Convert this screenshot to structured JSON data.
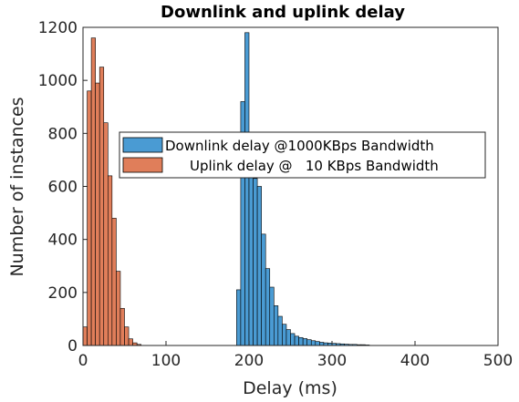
{
  "chart_data": {
    "type": "bar",
    "title": "Downlink and uplink delay",
    "xlabel": "Delay (ms)",
    "ylabel": "Number of instances",
    "xlim": [
      0,
      500
    ],
    "ylim": [
      0,
      1200
    ],
    "xticks": [
      "0",
      "100",
      "200",
      "300",
      "400",
      "500"
    ],
    "yticks": [
      "0",
      "200",
      "400",
      "600",
      "800",
      "1000",
      "1200"
    ],
    "bin_width": 5,
    "grid": false,
    "legend": "center",
    "colors": {
      "downlink": "#4a9bd3",
      "uplink": "#e07e5a",
      "edge": "#000000"
    },
    "series": [
      {
        "name": "Downlink delay @1000KBps Bandwidth",
        "color": "#4a9bd3",
        "bin_starts": [
          185,
          190,
          195,
          200,
          205,
          210,
          215,
          220,
          225,
          230,
          235,
          240,
          245,
          250,
          255,
          260,
          265,
          270,
          275,
          280,
          285,
          290,
          295,
          300,
          305,
          310,
          315,
          320,
          325,
          330,
          335,
          340
        ],
        "values": [
          210,
          920,
          1180,
          710,
          630,
          600,
          420,
          290,
          220,
          150,
          110,
          80,
          60,
          45,
          35,
          30,
          26,
          22,
          18,
          15,
          12,
          10,
          9,
          8,
          7,
          6,
          5,
          4,
          4,
          3,
          3,
          2
        ]
      },
      {
        "name": "Uplink delay @   10 KBps Bandwidth",
        "color": "#e07e5a",
        "bin_starts": [
          0,
          5,
          10,
          15,
          20,
          25,
          30,
          35,
          40,
          45,
          50,
          55,
          60,
          65
        ],
        "values": [
          70,
          960,
          1160,
          990,
          1050,
          840,
          640,
          480,
          280,
          140,
          70,
          25,
          10,
          4
        ]
      }
    ]
  }
}
